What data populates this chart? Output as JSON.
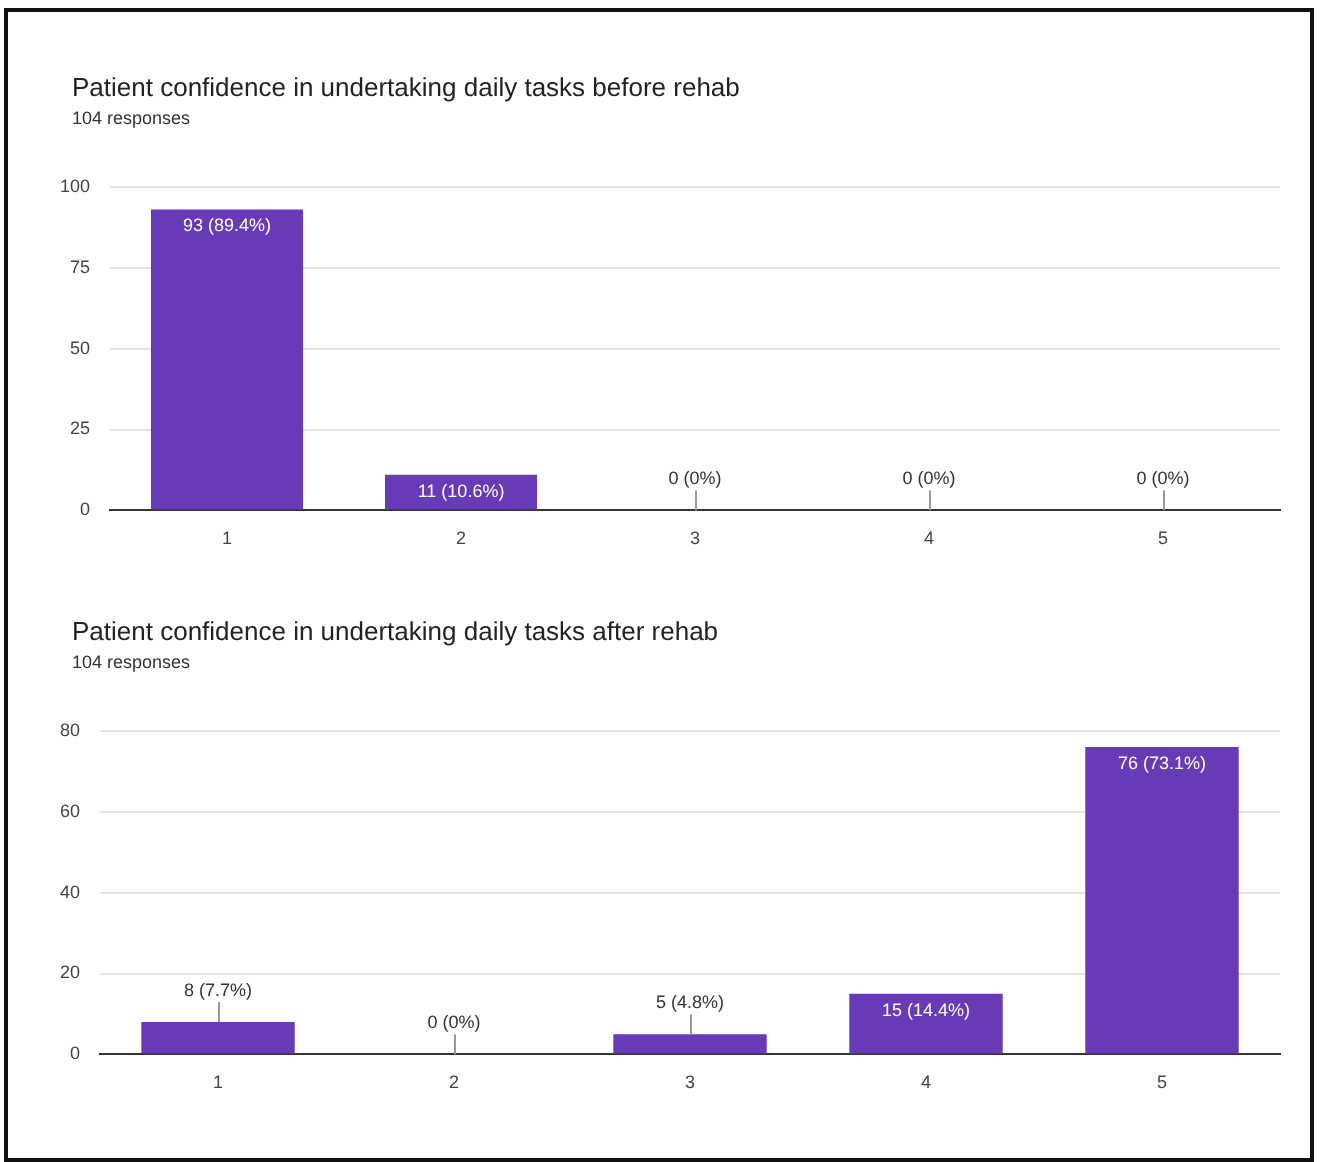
{
  "chart_data": [
    {
      "type": "bar",
      "title": "Patient confidence in undertaking daily tasks before rehab",
      "subtitle": "104 responses",
      "categories": [
        "1",
        "2",
        "3",
        "4",
        "5"
      ],
      "values": [
        93,
        11,
        0,
        0,
        0
      ],
      "value_labels": [
        "93 (89.4%)",
        "11 (10.6%)",
        "0 (0%)",
        "0 (0%)",
        "0 (0%)"
      ],
      "color": "#673ab7",
      "ylim": [
        0,
        100
      ],
      "yticks": [
        0,
        25,
        50,
        75,
        100
      ],
      "grid": "y"
    },
    {
      "type": "bar",
      "title": "Patient confidence in undertaking daily tasks after rehab",
      "subtitle": "104 responses",
      "categories": [
        "1",
        "2",
        "3",
        "4",
        "5"
      ],
      "values": [
        8,
        0,
        5,
        15,
        76
      ],
      "value_labels": [
        "8 (7.7%)",
        "0 (0%)",
        "5 (4.8%)",
        "15 (14.4%)",
        "76 (73.1%)"
      ],
      "color": "#673ab7",
      "ylim": [
        0,
        80
      ],
      "yticks": [
        0,
        20,
        40,
        60,
        80
      ],
      "grid": "y"
    }
  ]
}
